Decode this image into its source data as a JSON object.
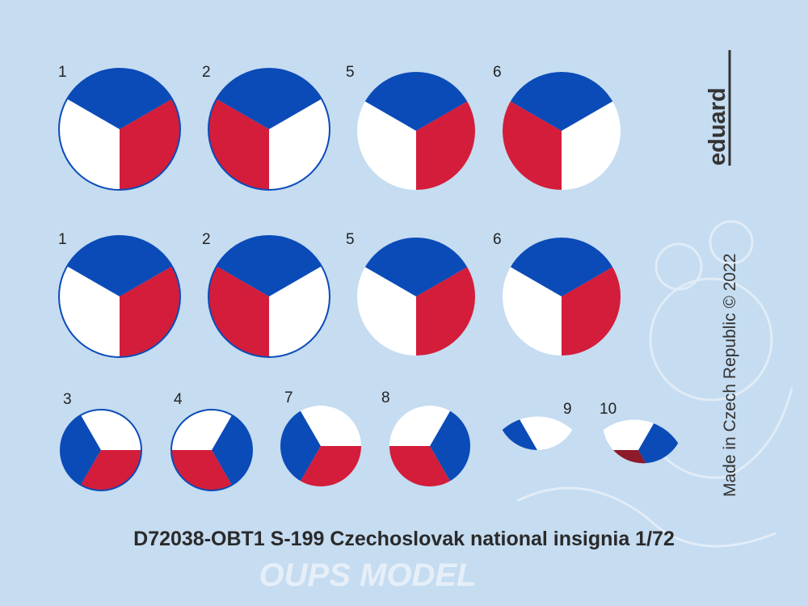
{
  "sheet": {
    "labels": [
      "1",
      "2",
      "5",
      "6",
      "1",
      "2",
      "5",
      "6",
      "3",
      "4",
      "7",
      "8",
      "9",
      "10"
    ],
    "brand": "eduard",
    "origin": "Made in Czech Republic  ©  2022",
    "title": "D72038-OBT1 S-199 Czechoslovak national insignia 1/72",
    "watermark": "OUPS MODEL"
  }
}
